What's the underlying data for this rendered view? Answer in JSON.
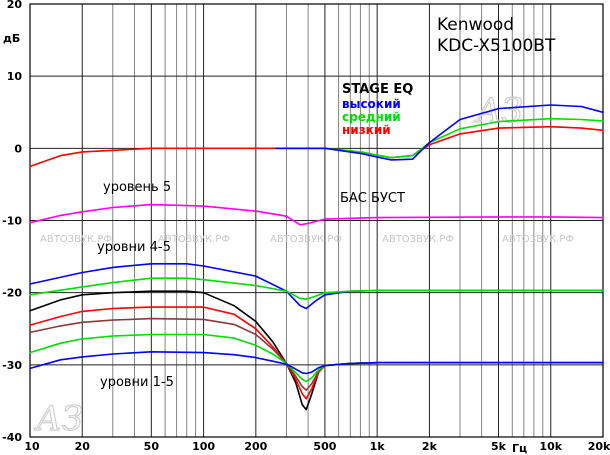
{
  "chart_data": {
    "type": "line",
    "title": [
      "Kenwood",
      "KDC-X5100BT"
    ],
    "xlabel": "Гц",
    "ylabel": "дБ",
    "x_scale": "log",
    "xlim": [
      10,
      20000
    ],
    "ylim": [
      -40,
      20
    ],
    "x_ticks": [
      {
        "value": 10,
        "label": "10"
      },
      {
        "value": 20,
        "label": "20"
      },
      {
        "value": 50,
        "label": "50"
      },
      {
        "value": 100,
        "label": "100"
      },
      {
        "value": 200,
        "label": "200"
      },
      {
        "value": 500,
        "label": "500"
      },
      {
        "value": 1000,
        "label": "1k"
      },
      {
        "value": 2000,
        "label": "2k"
      },
      {
        "value": 5000,
        "label": "5k"
      },
      {
        "value": 10000,
        "label": "10k"
      },
      {
        "value": 20000,
        "label": "20k"
      }
    ],
    "y_ticks": [
      {
        "value": 20,
        "label": "20"
      },
      {
        "value": 10,
        "label": "10"
      },
      {
        "value": 0,
        "label": "0"
      },
      {
        "value": -10,
        "label": "-10"
      },
      {
        "value": -20,
        "label": "-20"
      },
      {
        "value": -30,
        "label": "-30"
      },
      {
        "value": -40,
        "label": "-40"
      }
    ],
    "grid": true,
    "legend": {
      "position": "top-right",
      "title": "STAGE EQ",
      "entries": [
        {
          "label": "высокий",
          "color": "#0000ff"
        },
        {
          "label": "средний",
          "color": "#00dd00"
        },
        {
          "label": "низкий",
          "color": "#ff0000"
        }
      ]
    },
    "annotations": [
      {
        "text": "уровень 5"
      },
      {
        "text": "БАС БУСТ"
      },
      {
        "text": "уровни 4-5"
      },
      {
        "text": "уровни 1-5"
      }
    ],
    "watermark": "АВТОЗВУК.РФ",
    "series": [
      {
        "color": "#ff0000",
        "points": [
          [
            10,
            -2.5
          ],
          [
            15,
            -1.0
          ],
          [
            20,
            -0.5
          ],
          [
            50,
            0
          ],
          [
            200,
            0
          ],
          [
            500,
            0
          ],
          [
            800,
            -0.5
          ],
          [
            1200,
            -1.3
          ],
          [
            1600,
            -1.0
          ],
          [
            2000,
            0.5
          ],
          [
            3000,
            2.0
          ],
          [
            5000,
            2.8
          ],
          [
            10000,
            3.0
          ],
          [
            15000,
            2.8
          ],
          [
            20000,
            2.5
          ]
        ]
      },
      {
        "color": "#00dd00",
        "points": [
          [
            260,
            0
          ],
          [
            500,
            0
          ],
          [
            800,
            -0.5
          ],
          [
            1200,
            -1.3
          ],
          [
            1600,
            -1.0
          ],
          [
            2000,
            0.8
          ],
          [
            3000,
            2.7
          ],
          [
            5000,
            3.7
          ],
          [
            10000,
            4.1
          ],
          [
            15000,
            4.0
          ],
          [
            20000,
            3.8
          ]
        ]
      },
      {
        "color": "#0000ff",
        "points": [
          [
            260,
            0
          ],
          [
            500,
            0
          ],
          [
            800,
            -0.7
          ],
          [
            1200,
            -1.6
          ],
          [
            1600,
            -1.5
          ],
          [
            2000,
            0.8
          ],
          [
            3000,
            4.0
          ],
          [
            5000,
            5.5
          ],
          [
            10000,
            6.0
          ],
          [
            15000,
            5.8
          ],
          [
            20000,
            5.0
          ]
        ]
      },
      {
        "color": "#ff00ff",
        "points": [
          [
            10,
            -10.3
          ],
          [
            15,
            -9.3
          ],
          [
            20,
            -8.8
          ],
          [
            30,
            -8.2
          ],
          [
            50,
            -7.8
          ],
          [
            100,
            -8.0
          ],
          [
            200,
            -8.7
          ],
          [
            300,
            -9.4
          ],
          [
            360,
            -10.6
          ],
          [
            400,
            -10.4
          ],
          [
            500,
            -9.8
          ],
          [
            1000,
            -9.6
          ],
          [
            5000,
            -9.5
          ],
          [
            10000,
            -9.5
          ],
          [
            20000,
            -9.6
          ]
        ]
      },
      {
        "color": "#0000ff",
        "points": [
          [
            10,
            -18.8
          ],
          [
            20,
            -17.2
          ],
          [
            30,
            -16.5
          ],
          [
            50,
            -16.0
          ],
          [
            80,
            -16.0
          ],
          [
            100,
            -16.3
          ],
          [
            200,
            -17.7
          ],
          [
            300,
            -19.8
          ],
          [
            360,
            -21.8
          ],
          [
            390,
            -22.2
          ],
          [
            450,
            -21.0
          ],
          [
            500,
            -20.3
          ],
          [
            700,
            -19.8
          ],
          [
            1000,
            -19.7
          ],
          [
            5000,
            -19.7
          ],
          [
            20000,
            -19.7
          ]
        ]
      },
      {
        "color": "#00dd00",
        "points": [
          [
            10,
            -20.3
          ],
          [
            20,
            -19.2
          ],
          [
            30,
            -18.6
          ],
          [
            50,
            -18.0
          ],
          [
            80,
            -18.0
          ],
          [
            100,
            -18.2
          ],
          [
            200,
            -19.0
          ],
          [
            300,
            -19.8
          ],
          [
            360,
            -20.8
          ],
          [
            390,
            -20.9
          ],
          [
            450,
            -20.4
          ],
          [
            500,
            -20.0
          ],
          [
            700,
            -19.8
          ],
          [
            1000,
            -19.7
          ],
          [
            5000,
            -19.7
          ],
          [
            20000,
            -19.7
          ]
        ]
      },
      {
        "color": "#000000",
        "points": [
          [
            10,
            -22.5
          ],
          [
            15,
            -21.0
          ],
          [
            20,
            -20.3
          ],
          [
            30,
            -20.0
          ],
          [
            50,
            -19.8
          ],
          [
            80,
            -19.8
          ],
          [
            100,
            -20.0
          ],
          [
            150,
            -21.8
          ],
          [
            200,
            -24.0
          ],
          [
            250,
            -26.8
          ],
          [
            300,
            -29.8
          ],
          [
            340,
            -32.5
          ],
          [
            370,
            -35.5
          ],
          [
            390,
            -36.2
          ],
          [
            420,
            -34.0
          ],
          [
            460,
            -31.0
          ],
          [
            500,
            -30.1
          ],
          [
            700,
            -29.8
          ],
          [
            1000,
            -29.7
          ],
          [
            5000,
            -29.7
          ],
          [
            20000,
            -29.7
          ]
        ]
      },
      {
        "color": "#ff0000",
        "points": [
          [
            10,
            -24.5
          ],
          [
            15,
            -23.3
          ],
          [
            20,
            -22.6
          ],
          [
            30,
            -22.2
          ],
          [
            50,
            -22.0
          ],
          [
            100,
            -22.0
          ],
          [
            150,
            -23.0
          ],
          [
            200,
            -25.0
          ],
          [
            250,
            -27.5
          ],
          [
            300,
            -29.8
          ],
          [
            340,
            -32.0
          ],
          [
            370,
            -34.0
          ],
          [
            390,
            -34.7
          ],
          [
            420,
            -33.3
          ],
          [
            460,
            -31.0
          ],
          [
            500,
            -30.1
          ],
          [
            700,
            -29.8
          ],
          [
            1000,
            -29.7
          ],
          [
            5000,
            -29.7
          ],
          [
            20000,
            -29.7
          ]
        ]
      },
      {
        "color": "#8b3a3a",
        "points": [
          [
            10,
            -25.5
          ],
          [
            15,
            -24.6
          ],
          [
            20,
            -24.1
          ],
          [
            30,
            -23.8
          ],
          [
            50,
            -23.6
          ],
          [
            100,
            -23.7
          ],
          [
            150,
            -24.4
          ],
          [
            200,
            -25.8
          ],
          [
            250,
            -27.8
          ],
          [
            300,
            -29.8
          ],
          [
            340,
            -31.6
          ],
          [
            370,
            -33.0
          ],
          [
            390,
            -33.5
          ],
          [
            420,
            -32.6
          ],
          [
            460,
            -30.9
          ],
          [
            500,
            -30.1
          ],
          [
            700,
            -29.8
          ],
          [
            1000,
            -29.7
          ],
          [
            5000,
            -29.7
          ],
          [
            20000,
            -29.7
          ]
        ]
      },
      {
        "color": "#00dd00",
        "points": [
          [
            10,
            -28.3
          ],
          [
            15,
            -27.0
          ],
          [
            20,
            -26.4
          ],
          [
            30,
            -26.0
          ],
          [
            50,
            -25.8
          ],
          [
            100,
            -25.8
          ],
          [
            150,
            -26.3
          ],
          [
            200,
            -27.3
          ],
          [
            250,
            -28.5
          ],
          [
            300,
            -29.8
          ],
          [
            340,
            -31.1
          ],
          [
            370,
            -32.0
          ],
          [
            390,
            -32.3
          ],
          [
            420,
            -31.8
          ],
          [
            460,
            -30.7
          ],
          [
            500,
            -30.1
          ],
          [
            700,
            -29.8
          ],
          [
            1000,
            -29.7
          ],
          [
            5000,
            -29.7
          ],
          [
            20000,
            -29.7
          ]
        ]
      },
      {
        "color": "#0000ff",
        "points": [
          [
            10,
            -30.5
          ],
          [
            15,
            -29.3
          ],
          [
            20,
            -28.9
          ],
          [
            30,
            -28.5
          ],
          [
            50,
            -28.2
          ],
          [
            100,
            -28.3
          ],
          [
            150,
            -28.6
          ],
          [
            200,
            -29.0
          ],
          [
            250,
            -29.5
          ],
          [
            300,
            -29.9
          ],
          [
            340,
            -30.6
          ],
          [
            370,
            -31.1
          ],
          [
            390,
            -31.2
          ],
          [
            420,
            -31.0
          ],
          [
            460,
            -30.4
          ],
          [
            500,
            -30.1
          ],
          [
            700,
            -29.8
          ],
          [
            1000,
            -29.7
          ],
          [
            5000,
            -29.7
          ],
          [
            20000,
            -29.7
          ]
        ]
      }
    ]
  }
}
